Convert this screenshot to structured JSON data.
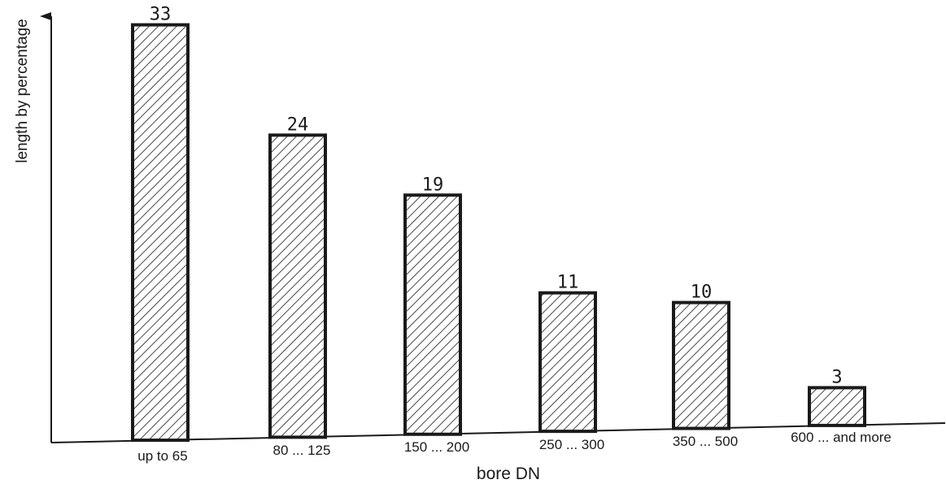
{
  "chart_data": {
    "type": "bar",
    "title": "",
    "xlabel": "bore DN",
    "ylabel": "length by percentage",
    "categories": [
      "up to 65",
      "80 ... 125",
      "150 ... 200",
      "250 ... 300",
      "350 ... 500",
      "600 ... and more"
    ],
    "values": [
      33,
      24,
      19,
      11,
      10,
      3
    ],
    "value_labels": [
      "33",
      "24",
      "19",
      "11",
      "10",
      "3"
    ],
    "ylim": [
      0,
      33
    ],
    "grid": false,
    "legend": "none",
    "bar_fill": "diagonal-hatch",
    "colors": {
      "ink": "#1a1a1a",
      "background": "#ffffff"
    }
  }
}
